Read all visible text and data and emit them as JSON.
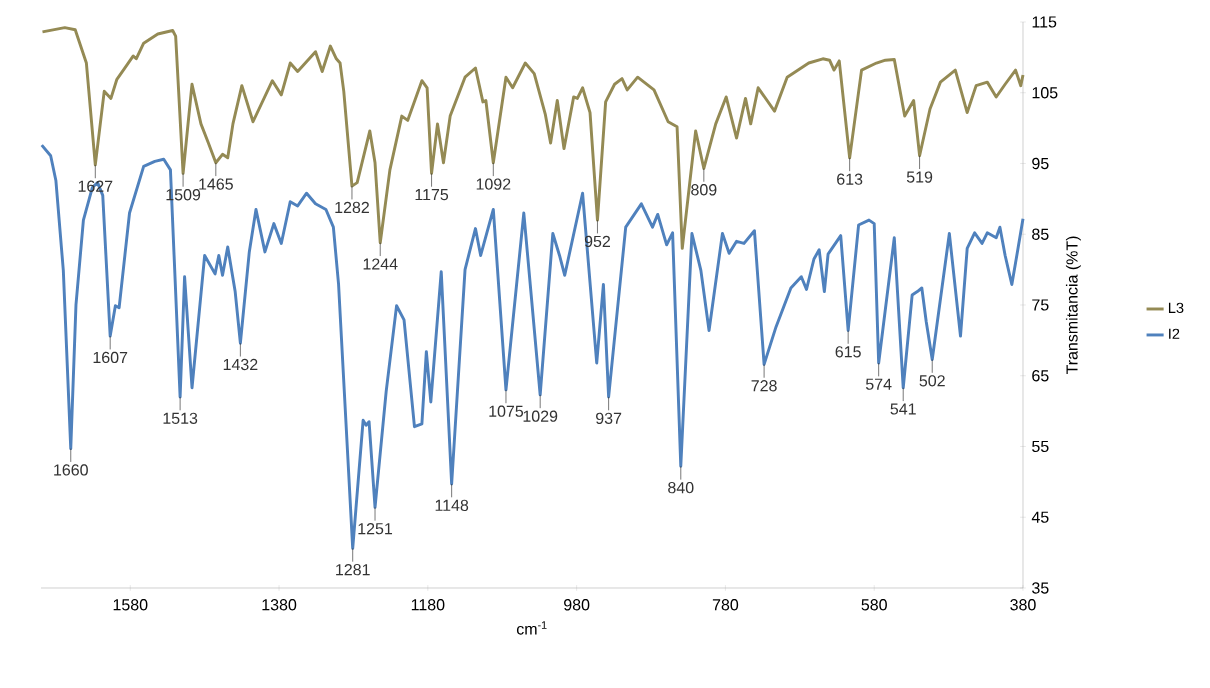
{
  "chart_data": {
    "type": "line",
    "xlabel": "cm$^{-1}$",
    "ylabel": "Transmitancia (%T)",
    "xlim": [
      1700,
      380
    ],
    "xticks": [
      1580,
      1380,
      1180,
      980,
      780,
      580,
      380
    ],
    "ylim": [
      35,
      115
    ],
    "yticks": [
      35,
      45,
      55,
      65,
      75,
      85,
      95,
      105,
      115
    ],
    "legend": "right",
    "series": [
      {
        "name": "L3",
        "color": "#948a54",
        "x": [
          1698,
          1668,
          1654,
          1639,
          1627,
          1615,
          1606,
          1598,
          1586,
          1576,
          1572,
          1562,
          1543,
          1523,
          1519,
          1509,
          1497,
          1485,
          1475,
          1465,
          1456,
          1449,
          1442,
          1430,
          1415,
          1389,
          1377,
          1365,
          1355,
          1331,
          1322,
          1311,
          1303,
          1298,
          1293,
          1282,
          1275,
          1258,
          1251,
          1244,
          1231,
          1215,
          1207,
          1188,
          1181,
          1175,
          1167,
          1159,
          1150,
          1130,
          1116,
          1106,
          1102,
          1092,
          1075,
          1066,
          1049,
          1037,
          1022,
          1015,
          1006,
          997,
          984,
          979,
          972,
          962,
          952,
          941,
          929,
          919,
          912,
          898,
          876,
          857,
          845,
          838,
          820,
          809,
          793,
          779,
          765,
          753,
          746,
          736,
          714,
          697,
          668,
          649,
          640,
          634,
          627,
          613,
          597,
          577,
          565,
          553,
          539,
          527,
          519,
          505,
          491,
          471,
          455,
          443,
          428,
          416,
          404,
          390,
          383,
          380
        ],
        "values": [
          113.6,
          114.2,
          113.9,
          109.2,
          94.8,
          105.2,
          104.2,
          106.9,
          108.7,
          110.2,
          109.8,
          112.0,
          113.3,
          113.8,
          113.0,
          93.6,
          106.2,
          100.6,
          97.9,
          95.1,
          96.3,
          95.8,
          100.6,
          106.0,
          100.9,
          106.7,
          104.7,
          109.2,
          108.0,
          110.8,
          108.0,
          111.6,
          109.8,
          109.2,
          105.2,
          91.8,
          92.3,
          99.6,
          95.1,
          83.8,
          94.1,
          101.7,
          101.1,
          106.7,
          105.7,
          93.6,
          100.6,
          95.1,
          101.7,
          107.2,
          108.5,
          103.7,
          103.9,
          95.1,
          107.2,
          105.7,
          109.2,
          107.7,
          101.9,
          97.9,
          103.9,
          97.1,
          104.4,
          104.2,
          105.7,
          102.2,
          87.0,
          103.7,
          106.2,
          107.0,
          105.4,
          107.2,
          105.4,
          100.9,
          100.2,
          83.0,
          99.6,
          94.3,
          100.6,
          104.4,
          98.6,
          104.2,
          100.6,
          105.7,
          102.4,
          107.2,
          109.2,
          109.8,
          109.6,
          108.2,
          109.5,
          95.8,
          108.2,
          109.2,
          109.6,
          109.7,
          101.7,
          103.9,
          96.1,
          102.7,
          106.5,
          108.2,
          102.2,
          106.0,
          106.5,
          104.4,
          106.2,
          108.2,
          106.0,
          107.5
        ]
      },
      {
        "name": "I2",
        "color": "#4f81bd",
        "x": [
          1699,
          1687,
          1680,
          1670,
          1660,
          1653,
          1643,
          1631,
          1624,
          1617,
          1607,
          1600,
          1595,
          1581,
          1562,
          1547,
          1535,
          1526,
          1513,
          1507,
          1497,
          1480,
          1466,
          1461,
          1456,
          1449,
          1439,
          1432,
          1420,
          1411,
          1399,
          1387,
          1377,
          1365,
          1355,
          1343,
          1331,
          1317,
          1307,
          1300,
          1281,
          1267,
          1263,
          1259,
          1251,
          1236,
          1222,
          1212,
          1198,
          1188,
          1182,
          1176,
          1162,
          1148,
          1130,
          1116,
          1109,
          1092,
          1075,
          1051,
          1029,
          1012,
          1003,
          996,
          972,
          953,
          944,
          937,
          914,
          893,
          878,
          871,
          859,
          851,
          840,
          825,
          813,
          802,
          784,
          775,
          765,
          755,
          741,
          728,
          712,
          692,
          678,
          671,
          661,
          654,
          647,
          642,
          625,
          615,
          601,
          587,
          580,
          574,
          553,
          541,
          529,
          522,
          516,
          510,
          502,
          479,
          464,
          455,
          445,
          435,
          428,
          416,
          411,
          404,
          395,
          387,
          380
        ],
        "values": [
          97.6,
          96.1,
          92.6,
          79.9,
          54.7,
          75.0,
          87.0,
          91.6,
          92.3,
          90.5,
          70.6,
          74.9,
          74.6,
          88.0,
          94.6,
          95.3,
          95.6,
          94.1,
          62.0,
          79.0,
          63.3,
          82.0,
          79.4,
          82.0,
          79.2,
          83.2,
          76.9,
          69.6,
          82.5,
          88.5,
          82.5,
          86.5,
          83.7,
          89.6,
          89.0,
          90.8,
          89.3,
          88.5,
          86.0,
          77.9,
          40.6,
          58.7,
          58.0,
          58.5,
          46.4,
          62.8,
          74.9,
          72.9,
          57.8,
          58.2,
          68.4,
          61.3,
          79.7,
          49.7,
          80.0,
          85.8,
          82.0,
          88.5,
          63.0,
          88.0,
          62.3,
          85.1,
          82.0,
          79.2,
          90.8,
          66.8,
          77.9,
          62.0,
          86.0,
          89.3,
          86.0,
          87.8,
          83.5,
          85.2,
          52.2,
          85.1,
          79.9,
          71.4,
          85.1,
          82.3,
          84.0,
          83.7,
          85.5,
          66.6,
          71.9,
          77.4,
          79.0,
          77.2,
          81.5,
          82.8,
          76.9,
          82.2,
          84.8,
          71.4,
          86.3,
          87.0,
          86.5,
          66.8,
          84.5,
          63.3,
          76.4,
          76.9,
          77.4,
          72.6,
          67.3,
          85.1,
          70.6,
          83.0,
          85.2,
          83.7,
          85.2,
          84.5,
          86.0,
          82.0,
          77.9,
          82.8,
          87.2
        ]
      }
    ],
    "annotations": [
      {
        "text": "1627",
        "x": 1627,
        "y": 94.8
      },
      {
        "text": "1509",
        "x": 1509,
        "y": 93.6
      },
      {
        "text": "1465",
        "x": 1465,
        "y": 95.1
      },
      {
        "text": "1282",
        "x": 1282,
        "y": 91.8
      },
      {
        "text": "1244",
        "x": 1244,
        "y": 83.8
      },
      {
        "text": "1175",
        "x": 1175,
        "y": 93.6
      },
      {
        "text": "1092",
        "x": 1092,
        "y": 95.1
      },
      {
        "text": "952",
        "x": 952,
        "y": 87.0
      },
      {
        "text": "809",
        "x": 809,
        "y": 94.3
      },
      {
        "text": "613",
        "x": 613,
        "y": 95.8
      },
      {
        "text": "519",
        "x": 519,
        "y": 96.1
      },
      {
        "text": "1660",
        "x": 1660,
        "y": 54.7
      },
      {
        "text": "1607",
        "x": 1607,
        "y": 70.6
      },
      {
        "text": "1513",
        "x": 1513,
        "y": 62.0
      },
      {
        "text": "1432",
        "x": 1432,
        "y": 69.6
      },
      {
        "text": "1281",
        "x": 1281,
        "y": 40.6
      },
      {
        "text": "1251",
        "x": 1251,
        "y": 46.4
      },
      {
        "text": "1148",
        "x": 1148,
        "y": 49.7
      },
      {
        "text": "1075",
        "x": 1075,
        "y": 63.0
      },
      {
        "text": "1029",
        "x": 1029,
        "y": 62.3
      },
      {
        "text": "937",
        "x": 937,
        "y": 62.0
      },
      {
        "text": "840",
        "x": 840,
        "y": 52.2
      },
      {
        "text": "728",
        "x": 728,
        "y": 66.6
      },
      {
        "text": "615",
        "x": 615,
        "y": 71.4
      },
      {
        "text": "574",
        "x": 574,
        "y": 66.8
      },
      {
        "text": "541",
        "x": 541,
        "y": 63.3
      },
      {
        "text": "502",
        "x": 502,
        "y": 67.3
      }
    ]
  }
}
